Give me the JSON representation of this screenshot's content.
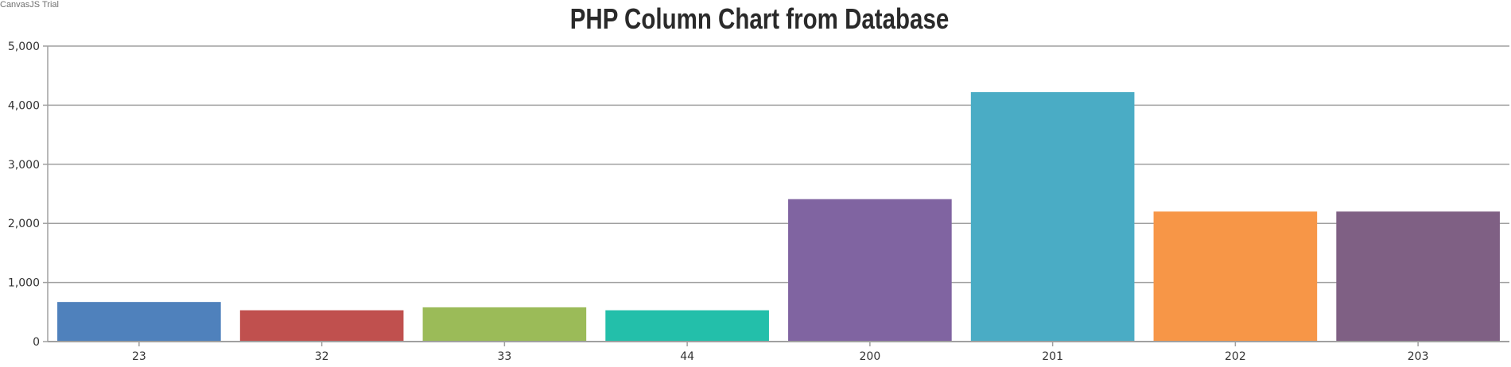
{
  "watermark": "CanvasJS Trial",
  "chart_data": {
    "type": "bar",
    "title": "PHP Column Chart from Database",
    "xlabel": "",
    "ylabel": "",
    "categories": [
      "23",
      "32",
      "33",
      "44",
      "200",
      "201",
      "202",
      "203"
    ],
    "values": [
      670,
      530,
      580,
      530,
      2410,
      4220,
      2200,
      2200
    ],
    "colors": [
      "#4F81BC",
      "#C0504E",
      "#9BBB58",
      "#23BFAA",
      "#8064A1",
      "#4AACC5",
      "#F79647",
      "#7F6084"
    ],
    "ylim": [
      0,
      5000
    ],
    "yticks": [
      0,
      1000,
      2000,
      3000,
      4000,
      5000
    ],
    "ytick_labels": [
      "0",
      "1,000",
      "2,000",
      "3,000",
      "4,000",
      "5,000"
    ],
    "grid": true,
    "legend": "none"
  }
}
